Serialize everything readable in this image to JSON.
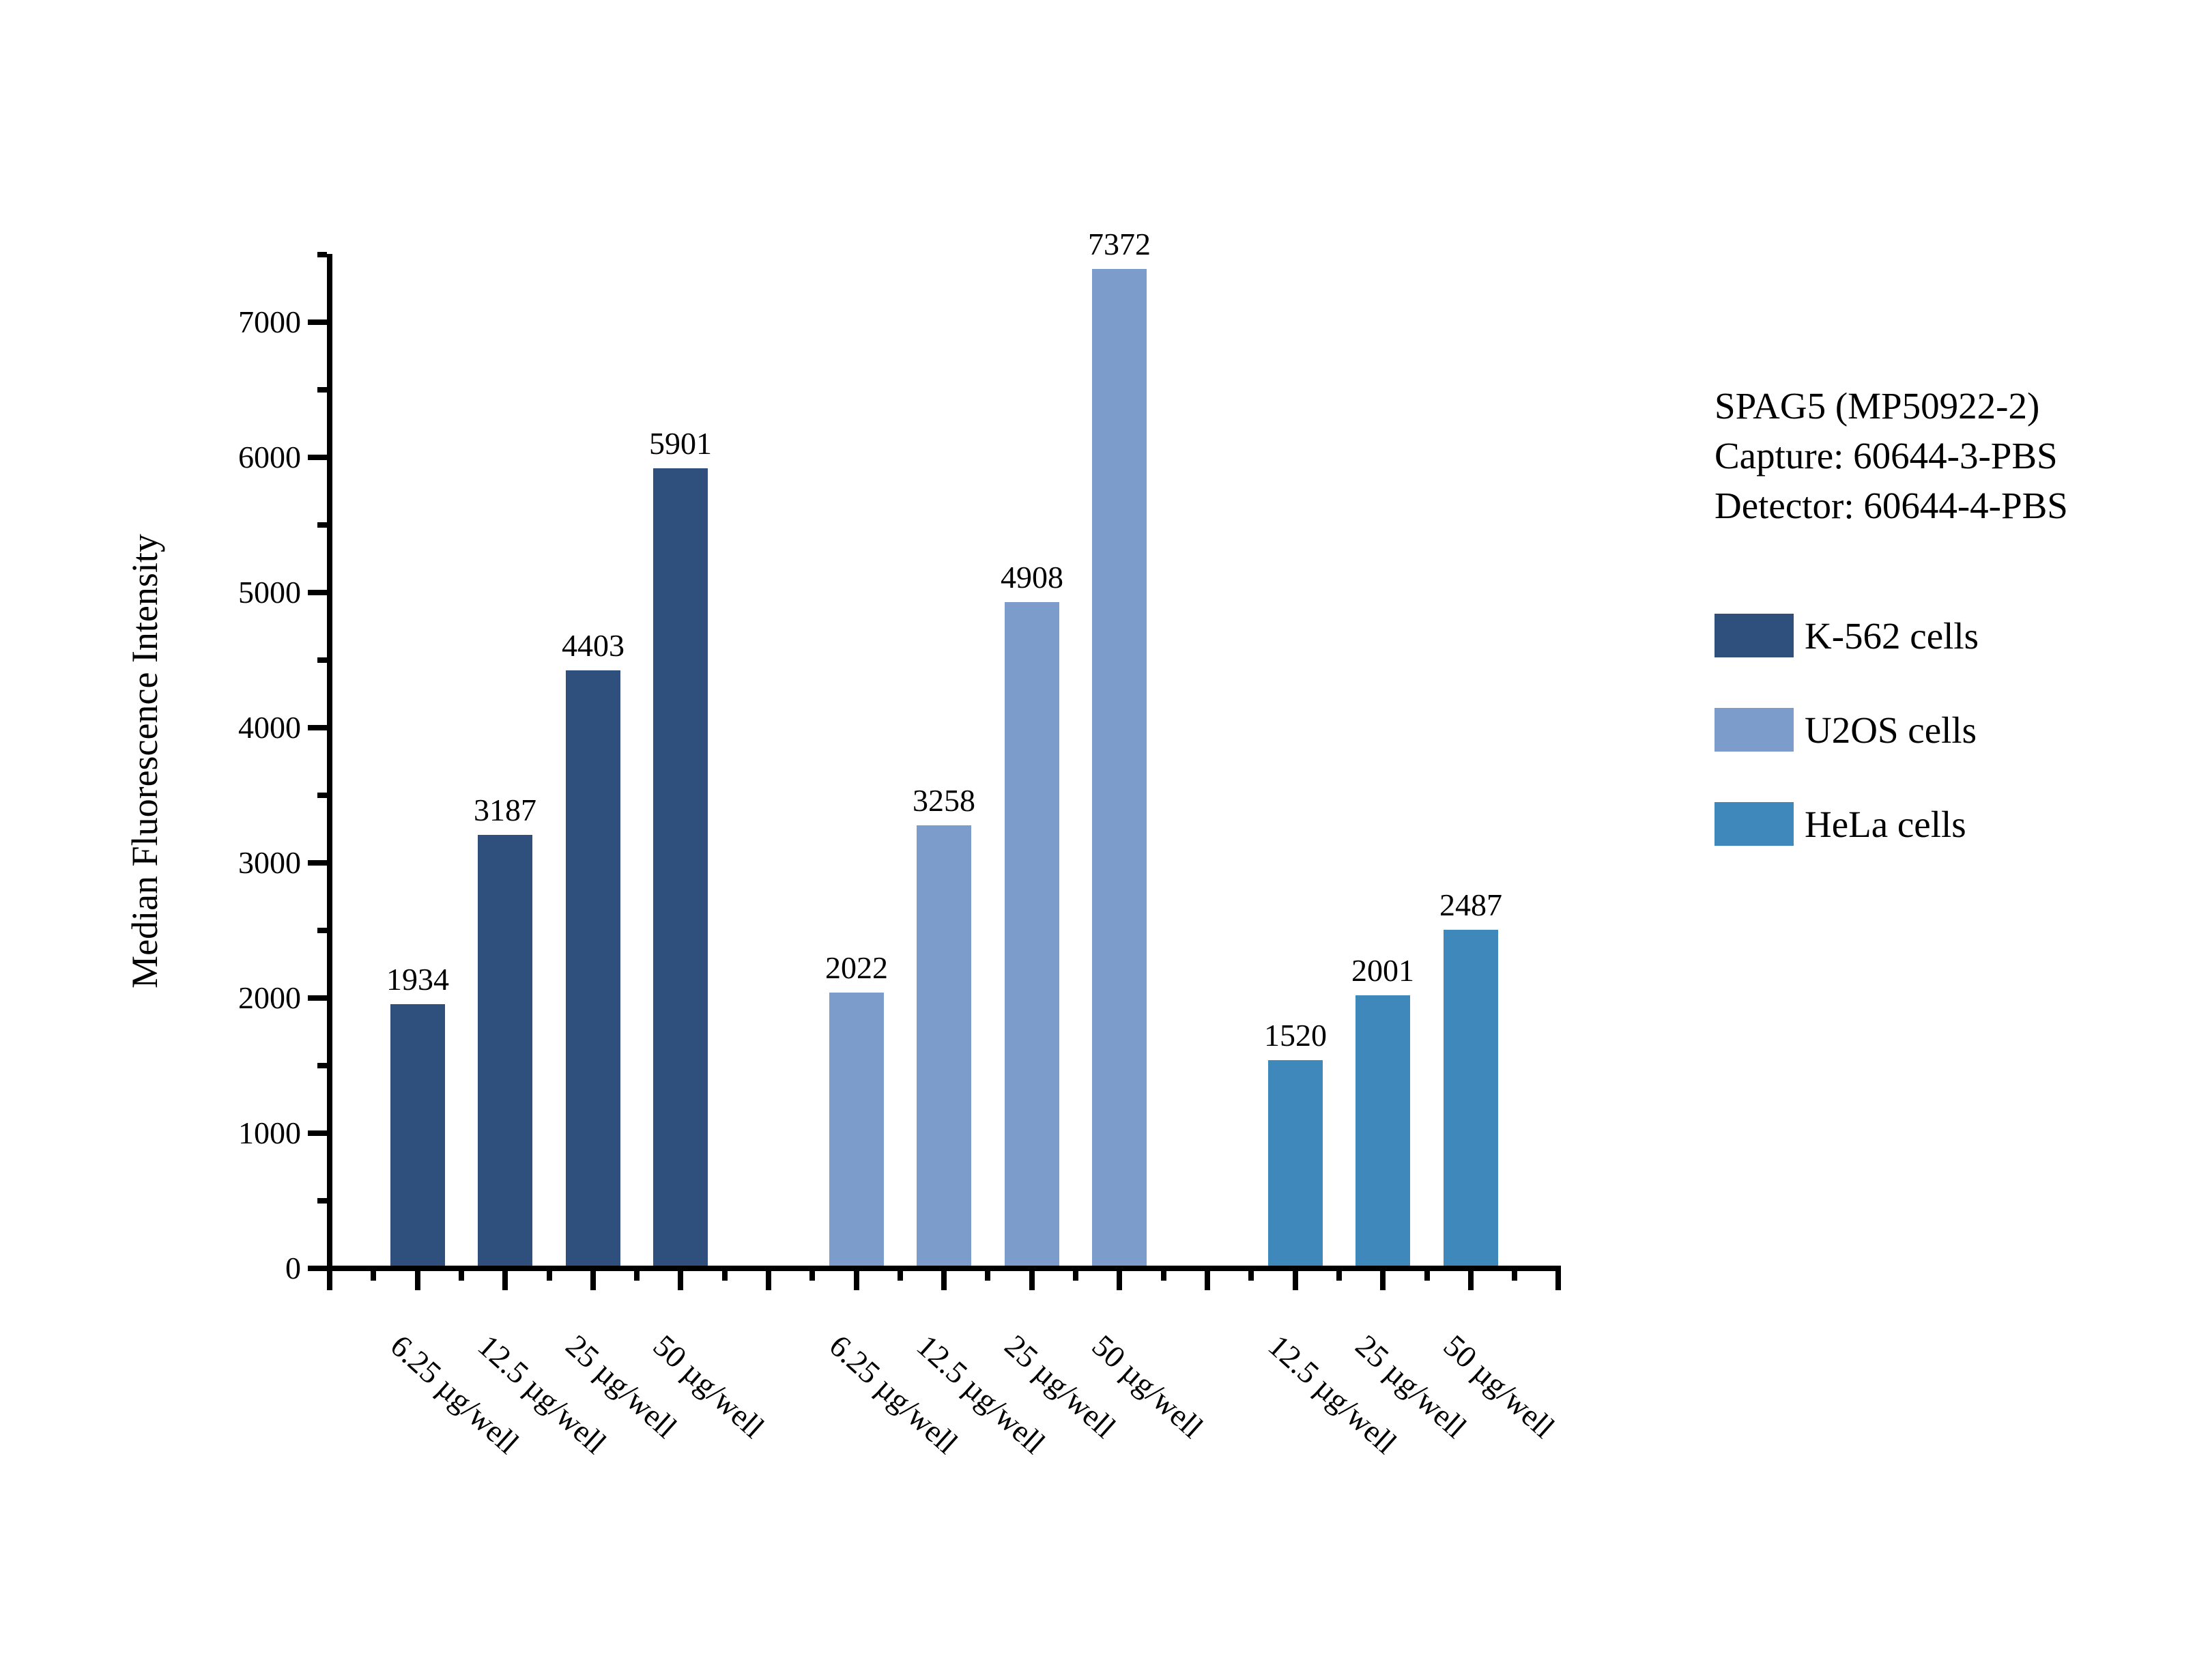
{
  "chart_data": {
    "type": "bar",
    "title": "",
    "xlabel": "",
    "ylabel": "Median Fluorescence Intensity",
    "ylim": [
      0,
      7500
    ],
    "y_major_tick_step": 1000,
    "y_minor_tick_step": 500,
    "y_major_ticks": [
      "0",
      "1000",
      "2000",
      "3000",
      "4000",
      "5000",
      "6000",
      "7000"
    ],
    "grid": false,
    "legend_position": "right-outside",
    "bar_value_labels": true,
    "series": [
      {
        "name": "K-562 cells",
        "color": "#2F4F7D",
        "categories": [
          "6.25 µg/well",
          "12.5 µg/well",
          "25 µg/well",
          "50 µg/well"
        ],
        "values": [
          1934,
          3187,
          4403,
          5901
        ]
      },
      {
        "name": "U2OS cells",
        "color": "#7C9CCB",
        "categories": [
          "6.25 µg/well",
          "12.5 µg/well",
          "25 µg/well",
          "50 µg/well"
        ],
        "values": [
          2022,
          3258,
          4908,
          7372
        ]
      },
      {
        "name": "HeLa cells",
        "color": "#3E88BB",
        "categories": [
          "12.5 µg/well",
          "25 µg/well",
          "50 µg/well"
        ],
        "values": [
          1520,
          2001,
          2487
        ]
      }
    ]
  },
  "annotation": {
    "line1": "SPAG5 (MP50922-2)",
    "line2": "Capture: 60644-3-PBS",
    "line3": "Detector: 60644-4-PBS"
  },
  "legend": {
    "items": [
      {
        "label": "K-562 cells",
        "color": "#2F4F7D"
      },
      {
        "label": "U2OS cells",
        "color": "#7C9CCB"
      },
      {
        "label": "HeLa cells",
        "color": "#3E88BB"
      }
    ]
  }
}
